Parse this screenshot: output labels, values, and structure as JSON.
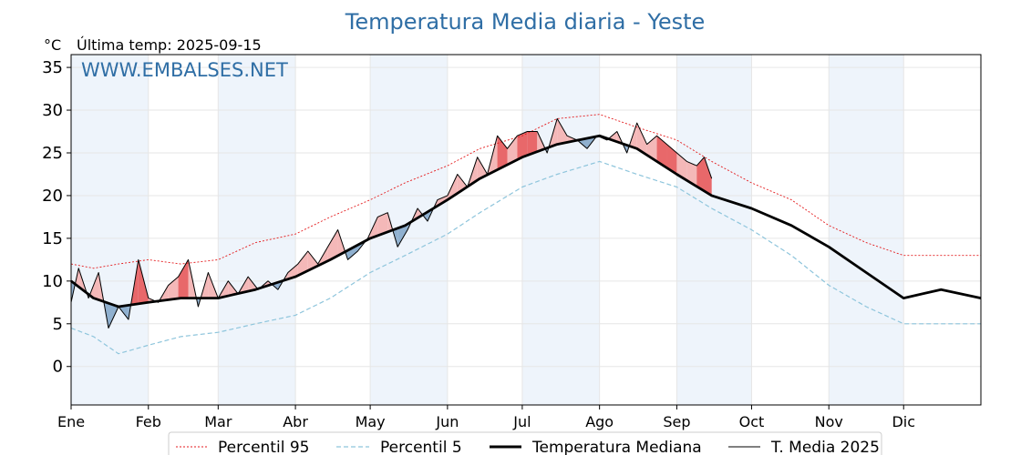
{
  "header": {
    "title": "Temperatura Media diaria - Yeste",
    "unit": "°C",
    "last_temp": "Última temp: 2025-09-15",
    "watermark": "WWW.EMBALSES.NET"
  },
  "colors": {
    "title": "#2f6ea5",
    "p95": "#e41a1c",
    "p5": "#8ec5dc",
    "median": "#000000",
    "current": "#000000",
    "above_fill": "#f4b8b8",
    "above_strong": "#e8686a",
    "below_fill": "#8fb0cf",
    "below_strong": "#1f4e7a",
    "month_band": "#eef4fb"
  },
  "chart_data": {
    "type": "line",
    "title": "Temperatura Media diaria - Yeste",
    "ylabel": "°C",
    "xlabel": "",
    "ylim": [
      -4.5,
      36.5
    ],
    "yticks": [
      0,
      5,
      10,
      15,
      20,
      25,
      30,
      35
    ],
    "x_unit": "day of year",
    "xlim": [
      1,
      366
    ],
    "grid": true,
    "legend_position": "bottom",
    "months": [
      {
        "label": "Ene",
        "start_day": 1
      },
      {
        "label": "Feb",
        "start_day": 32
      },
      {
        "label": "Mar",
        "start_day": 60
      },
      {
        "label": "Abr",
        "start_day": 91
      },
      {
        "label": "May",
        "start_day": 121
      },
      {
        "label": "Jun",
        "start_day": 152
      },
      {
        "label": "Jul",
        "start_day": 182
      },
      {
        "label": "Ago",
        "start_day": 213
      },
      {
        "label": "Sep",
        "start_day": 244
      },
      {
        "label": "Oct",
        "start_day": 274
      },
      {
        "label": "Nov",
        "start_day": 305
      },
      {
        "label": "Dic",
        "start_day": 335
      }
    ],
    "series": [
      {
        "name": "Percentil 95",
        "style": "dotted",
        "x": [
          1,
          10,
          20,
          32,
          45,
          60,
          75,
          91,
          105,
          121,
          135,
          152,
          165,
          182,
          196,
          213,
          228,
          244,
          258,
          274,
          290,
          305,
          320,
          335,
          350,
          366
        ],
        "y": [
          12.0,
          11.5,
          12.0,
          12.5,
          12.0,
          12.5,
          14.5,
          15.5,
          17.5,
          19.5,
          21.5,
          23.5,
          25.5,
          27.0,
          29.0,
          29.5,
          28.0,
          26.5,
          24.0,
          21.5,
          19.5,
          16.5,
          14.5,
          13.0,
          13.0,
          13.0
        ]
      },
      {
        "name": "Percentil 5",
        "style": "dashed",
        "x": [
          1,
          10,
          20,
          32,
          45,
          60,
          75,
          91,
          105,
          121,
          135,
          152,
          165,
          182,
          196,
          213,
          228,
          244,
          258,
          274,
          290,
          305,
          320,
          335,
          350,
          366
        ],
        "y": [
          4.5,
          3.5,
          1.5,
          2.5,
          3.5,
          4.0,
          5.0,
          6.0,
          8.0,
          11.0,
          13.0,
          15.5,
          18.0,
          21.0,
          22.5,
          24.0,
          22.5,
          21.0,
          18.5,
          16.0,
          13.0,
          9.5,
          7.0,
          5.0,
          5.0,
          5.0
        ]
      },
      {
        "name": "Temperatura Mediana",
        "style": "thick",
        "x": [
          1,
          10,
          20,
          32,
          45,
          60,
          75,
          91,
          105,
          121,
          135,
          152,
          165,
          182,
          196,
          213,
          228,
          244,
          258,
          274,
          290,
          305,
          320,
          335,
          350,
          366
        ],
        "y": [
          10.0,
          8.0,
          7.0,
          7.5,
          8.0,
          8.0,
          9.0,
          10.5,
          12.5,
          15.0,
          16.5,
          19.5,
          22.0,
          24.5,
          26.0,
          27.0,
          25.5,
          22.5,
          20.0,
          18.5,
          16.5,
          14.0,
          11.0,
          8.0,
          9.0,
          8.0
        ]
      },
      {
        "name": "T. Media 2025",
        "style": "thin",
        "x": [
          1,
          4,
          8,
          12,
          16,
          20,
          24,
          28,
          32,
          36,
          40,
          44,
          48,
          52,
          56,
          60,
          64,
          68,
          72,
          76,
          80,
          84,
          88,
          92,
          96,
          100,
          104,
          108,
          112,
          116,
          120,
          124,
          128,
          132,
          136,
          140,
          144,
          148,
          152,
          156,
          160,
          164,
          168,
          172,
          176,
          180,
          184,
          188,
          192,
          196,
          200,
          204,
          208,
          212,
          216,
          220,
          224,
          228,
          232,
          236,
          240,
          244,
          248,
          252,
          255,
          258
        ],
        "y": [
          7.5,
          11.5,
          8.0,
          11.0,
          4.5,
          7.0,
          5.5,
          12.5,
          8.0,
          7.5,
          9.5,
          10.5,
          12.5,
          7.0,
          11.0,
          8.0,
          10.0,
          8.5,
          10.5,
          9.0,
          10.0,
          9.0,
          11.0,
          12.0,
          13.5,
          12.0,
          14.0,
          16.0,
          12.5,
          13.5,
          15.0,
          17.5,
          18.0,
          14.0,
          16.0,
          18.5,
          17.0,
          19.5,
          20.0,
          22.5,
          21.0,
          24.5,
          22.5,
          27.0,
          25.5,
          27.0,
          27.5,
          27.5,
          25.0,
          29.0,
          27.0,
          26.5,
          25.5,
          27.0,
          26.5,
          27.5,
          25.0,
          28.5,
          26.0,
          27.0,
          26.0,
          25.0,
          24.0,
          23.5,
          24.5,
          22.0
        ]
      }
    ]
  },
  "legend": {
    "p95": "Percentil 95",
    "p5": "Percentil 5",
    "median": "Temperatura Mediana",
    "current": "T. Media 2025"
  }
}
